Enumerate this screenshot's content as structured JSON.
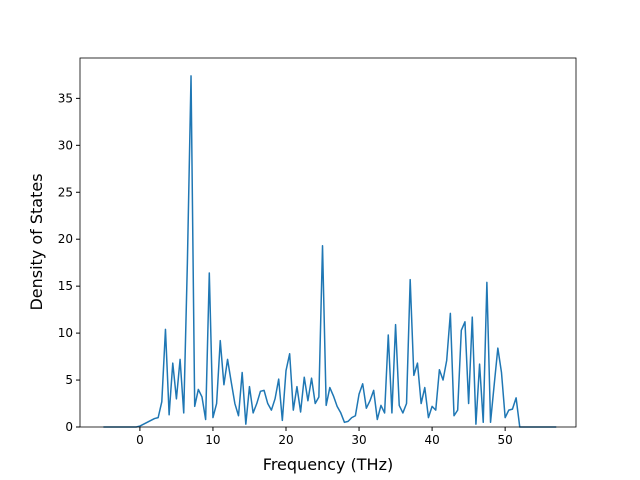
{
  "chart_data": {
    "type": "line",
    "xlabel": "Frequency (THz)",
    "ylabel": "Density of States",
    "x": [
      -5,
      -4.5,
      -4,
      -3.5,
      -3,
      -2.5,
      -2,
      -1.5,
      -1,
      -0.5,
      0,
      0.5,
      1,
      1.5,
      2,
      2.5,
      3,
      3.5,
      4,
      4.5,
      5,
      5.5,
      6,
      6.5,
      7,
      7.5,
      8,
      8.5,
      9,
      9.5,
      10,
      10.5,
      11,
      11.5,
      12,
      12.5,
      13,
      13.5,
      14,
      14.5,
      15,
      15.5,
      16,
      16.5,
      17,
      17.5,
      18,
      18.5,
      19,
      19.5,
      20,
      20.5,
      21,
      21.5,
      22,
      22.5,
      23,
      23.5,
      24,
      24.5,
      25,
      25.5,
      26,
      26.5,
      27,
      27.5,
      28,
      28.5,
      29,
      29.5,
      30,
      30.5,
      31,
      31.5,
      32,
      32.5,
      33,
      33.5,
      34,
      34.5,
      35,
      35.5,
      36,
      36.5,
      37,
      37.5,
      38,
      38.5,
      39,
      39.5,
      40,
      40.5,
      41,
      41.5,
      42,
      42.5,
      43,
      43.5,
      44,
      44.5,
      45,
      45.5,
      46,
      46.5,
      47,
      47.5,
      48,
      48.5,
      49,
      49.5,
      50,
      50.5,
      51,
      51.5,
      52,
      52.5,
      53,
      53.5,
      54,
      54.5,
      55,
      55.5,
      56,
      56.5,
      57
    ],
    "series": [
      {
        "color": "#1f77b4",
        "values": [
          0,
          0,
          0,
          0,
          0,
          0,
          0,
          0,
          0,
          0,
          0.1,
          0.3,
          0.5,
          0.7,
          0.9,
          1.0,
          2.7,
          10.4,
          1.3,
          6.8,
          3.0,
          7.2,
          1.5,
          17.5,
          37.4,
          2.2,
          4.0,
          3.2,
          0.8,
          16.4,
          1.0,
          2.5,
          9.2,
          4.5,
          7.2,
          4.8,
          2.5,
          1.2,
          5.8,
          0.3,
          4.3,
          1.5,
          2.5,
          3.8,
          3.9,
          2.5,
          1.8,
          3.0,
          5.1,
          0.7,
          6.0,
          7.8,
          1.8,
          4.3,
          1.6,
          5.3,
          2.8,
          5.2,
          2.5,
          3.2,
          19.3,
          2.3,
          4.2,
          3.3,
          2.2,
          1.5,
          0.5,
          0.6,
          1.0,
          1.2,
          3.5,
          4.6,
          2.0,
          2.8,
          3.9,
          0.8,
          2.3,
          1.5,
          9.8,
          1.5,
          10.9,
          2.3,
          1.5,
          2.5,
          15.7,
          5.5,
          6.8,
          2.5,
          4.2,
          1.0,
          2.2,
          1.8,
          6.1,
          5.0,
          7.1,
          12.1,
          1.2,
          1.8,
          10.3,
          11.2,
          2.5,
          11.7,
          0.3,
          6.7,
          0.5,
          15.4,
          0.5,
          4.5,
          8.4,
          5.8,
          1.0,
          1.8,
          1.9,
          3.1,
          0,
          0,
          0,
          0,
          0,
          0,
          0,
          0,
          0,
          0,
          0
        ]
      }
    ],
    "xlim": [
      -8.2,
      59.7
    ],
    "xticks": [
      0,
      10,
      20,
      30,
      40,
      50
    ],
    "ylim": [
      0,
      39.3
    ],
    "yticks": [
      0,
      5,
      10,
      15,
      20,
      25,
      30,
      35
    ]
  }
}
